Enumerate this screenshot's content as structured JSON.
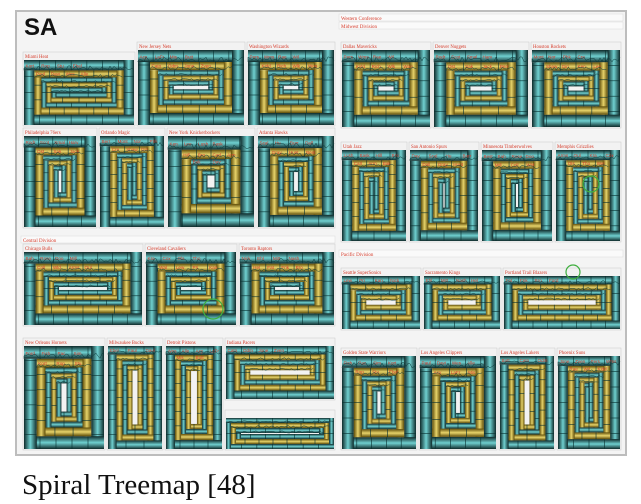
{
  "badge": "SA",
  "caption": "Spiral Treemap [48]",
  "colors": {
    "teal": "#2f9fa6",
    "teal_light": "#6fd0d0",
    "dark": "#0f2b2b",
    "gold": "#c6a91a",
    "gold_light": "#e7d36a",
    "label": "#d63b2a",
    "panel": "#f2f2f2",
    "highlight": "#3fae3f"
  },
  "regions": [
    {
      "name": "Eastern Conference",
      "divisions": [
        {
          "name": "Atlantic Division",
          "teams": [
            "Miami Heat",
            "New Jersey Nets",
            "Washington Wizards",
            "Philadelphia 76ers",
            "Orlando Magic",
            "New York Knickerbockers"
          ]
        },
        {
          "name": "Central Division",
          "teams": [
            "Atlanta Hawks",
            "Chicago Bulls",
            "Cleveland Cavaliers",
            "Toronto Raptors",
            "New Orleans Hornets",
            "Milwaukee Bucks",
            "Detroit Pistons",
            "Indiana Pacers"
          ]
        }
      ]
    },
    {
      "name": "Western Conference",
      "divisions": [
        {
          "name": "Midwest Division",
          "teams": [
            "Dallas Mavericks",
            "Denver Nuggets",
            "Houston Rockets",
            "Utah Jazz",
            "San Antonio Spurs",
            "Minnesota Timberwolves",
            "Memphis Grizzlies"
          ]
        },
        {
          "name": "Pacific Division",
          "teams": [
            "Seattle SuperSonics",
            "Sacramento Kings",
            "Portland Trail Blazers",
            "Golden State Warriors",
            "Los Angeles Clippers",
            "Los Angeles Lakers",
            "Phoenix Suns"
          ]
        }
      ]
    }
  ],
  "player_labels": [
    "Kort",
    "Rop",
    "Stu",
    "Ebel",
    "Paul",
    "Davi",
    "Wes",
    "Alle",
    "Acy",
    "LaFr",
    "Mis",
    "Butt",
    "Cato",
    "Odm",
    "Jone",
    "Zven",
    "Pers",
    "Wms",
    "Rae",
    "Wil",
    "Kidd",
    "Rich",
    "Wlk",
    "Woo",
    "Rodr",
    "Scot",
    "Smal",
    "Harv",
    "Ost",
    "Sak",
    "Jack",
    "Berr",
    "Mont",
    "Nor",
    "Phk",
    "Cre",
    "Shaw",
    "Giri",
    "Ken",
    "Lee",
    "Lush",
    "Bask",
    "Hill",
    "Bro",
    "Carl",
    "Arm",
    "Bak",
    "Dav",
    "Scal",
    "Hu",
    "Burr",
    "Dall",
    "Gray",
    "Hunt",
    "Best",
    "Bah",
    "Rose",
    "Doo",
    "Mill",
    "Coll",
    "Wld",
    "Arms",
    "Oul",
    "Kra",
    "Cox",
    "Ols",
    "Tho",
    "Wal",
    "Lew",
    "Pri",
    "Kan",
    "Nick",
    "Ehl",
    "Mitt",
    "Nash",
    "Hel",
    "Fat",
    "Frik",
    "Bro",
    "Ford",
    "Fish",
    "Pac",
    "Sim"
  ]
}
